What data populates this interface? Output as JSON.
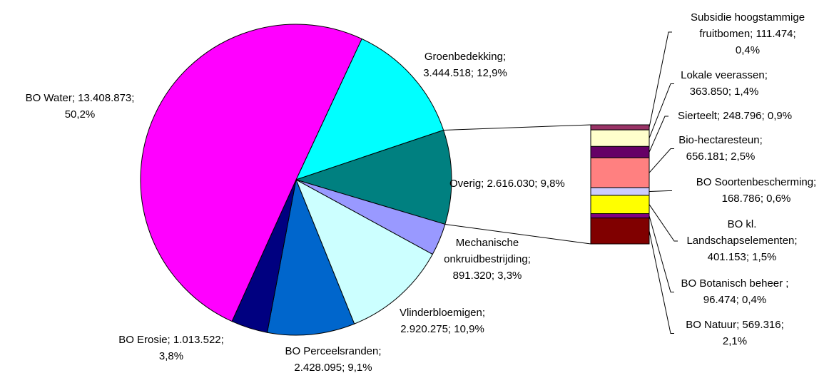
{
  "chart_data": {
    "type": "pie-of-bar",
    "slices": [
      {
        "label_lines": [
          "Groenbedekking;",
          "3.444.518; 12,9%"
        ],
        "value": 3444518,
        "color": "#00ffff"
      },
      {
        "label_lines": [
          "Overig; 2.616.030; 9,8%"
        ],
        "value": 2616030,
        "color": "#008080"
      },
      {
        "label_lines": [
          "Mechanische",
          "onkruidbestrijding;",
          "891.320; 3,3%"
        ],
        "value": 891320,
        "color": "#9999ff"
      },
      {
        "label_lines": [
          "Vlinderbloemigen;",
          "2.920.275; 10,9%"
        ],
        "value": 2920275,
        "color": "#ccffff"
      },
      {
        "label_lines": [
          "BO Perceelsranden;",
          "2.428.095; 9,1%"
        ],
        "value": 2428095,
        "color": "#0066cc"
      },
      {
        "label_lines": [
          "BO Erosie; 1.013.522;",
          "3,8%"
        ],
        "value": 1013522,
        "color": "#000080"
      },
      {
        "label_lines": [
          "BO Water; 13.408.873;",
          "50,2%"
        ],
        "value": 13408873,
        "color": "#ff00ff"
      }
    ],
    "bar_slices": [
      {
        "label_lines": [
          "Subsidie hoogstammige",
          "fruitbomen; 111.474;",
          "0,4%"
        ],
        "value": 111474,
        "color": "#993366"
      },
      {
        "label_lines": [
          "Lokale veerassen;",
          "363.850; 1,4%"
        ],
        "value": 363850,
        "color": "#ffffcc"
      },
      {
        "label_lines": [
          "Sierteelt; 248.796; 0,9%"
        ],
        "value": 248796,
        "color": "#660066"
      },
      {
        "label_lines": [
          "Bio-hectaresteun;",
          "656.181; 2,5%"
        ],
        "value": 656181,
        "color": "#ff8080"
      },
      {
        "label_lines": [
          "BO Soortenbescherming;",
          "168.786; 0,6%"
        ],
        "value": 168786,
        "color": "#ccccff"
      },
      {
        "label_lines": [
          "BO kl.",
          "Landschapselementen;",
          "401.153; 1,5%"
        ],
        "value": 401153,
        "color": "#ffff00"
      },
      {
        "label_lines": [
          "BO Botanisch beheer ;",
          "96.474; 0,4%"
        ],
        "value": 96474,
        "color": "#800080"
      },
      {
        "label_lines": [
          "BO Natuur; 569.316;",
          "2,1%"
        ],
        "value": 569316,
        "color": "#800000"
      }
    ]
  }
}
